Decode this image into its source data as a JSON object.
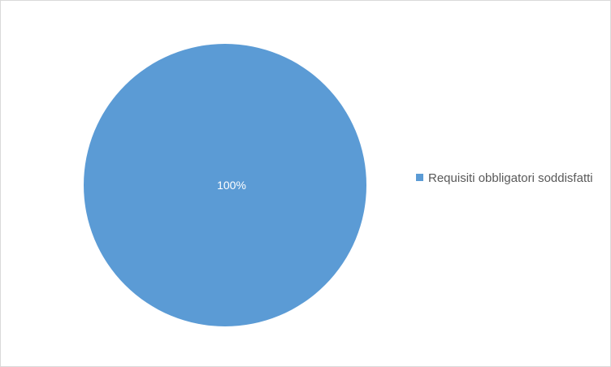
{
  "chart_data": {
    "type": "pie",
    "categories": [
      "Requisiti obbligatori soddisfatti"
    ],
    "values": [
      100
    ],
    "data_labels": [
      "100%"
    ],
    "colors": [
      "#5b9bd5"
    ],
    "legend_position": "right",
    "title": ""
  },
  "legend": {
    "items": [
      {
        "label": "Requisiti obbligatori soddisfatti",
        "color": "#5b9bd5"
      }
    ]
  }
}
